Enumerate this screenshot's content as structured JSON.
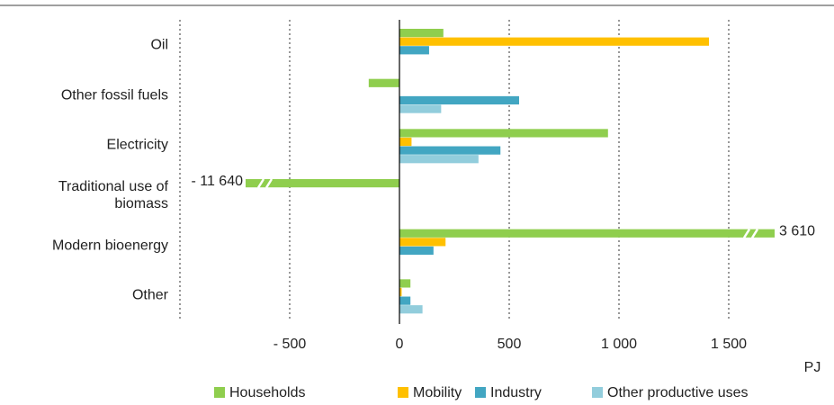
{
  "chart_data": {
    "type": "bar",
    "orientation": "horizontal",
    "categories": [
      "Oil",
      "Other fossil fuels",
      "Electricity",
      "Traditional use of biomass",
      "Modern bioenergy",
      "Other"
    ],
    "series": [
      {
        "name": "Households",
        "color": "#8fce4e",
        "values": [
          200,
          -140,
          950,
          -11640,
          3610,
          50
        ],
        "value_labels": [
          null,
          null,
          null,
          "- 11 640",
          "3 610",
          null
        ]
      },
      {
        "name": "Mobility",
        "color": "#ffc000",
        "values": [
          1410,
          0,
          55,
          0,
          210,
          10
        ]
      },
      {
        "name": "Industry",
        "color": "#42a6c2",
        "values": [
          135,
          545,
          460,
          0,
          155,
          50
        ]
      },
      {
        "name": "Other productive uses",
        "color": "#92cddc",
        "values": [
          0,
          190,
          360,
          0,
          0,
          105
        ]
      }
    ],
    "xlim": [
      -1000,
      1750
    ],
    "xticks": [
      {
        "value": -500,
        "label": "- 500"
      },
      0,
      500,
      {
        "value": 1000,
        "label": "1 000"
      },
      {
        "value": 1500,
        "label": "1 500"
      }
    ],
    "xlabel": "PJ",
    "grid": true,
    "legend": "bottom"
  }
}
